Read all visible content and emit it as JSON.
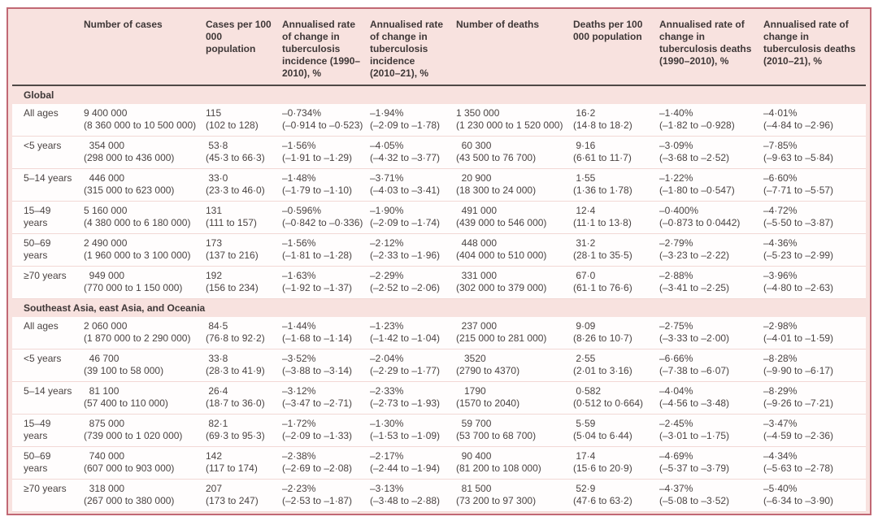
{
  "colors": {
    "frame_background": "#f8e2df",
    "frame_border": "#c16874",
    "header_rule": "#4f4846",
    "body_text": "#4a4342",
    "header_text": "#3e3737",
    "row_divider": "#f2d8d5",
    "row_background": "#fffdfd"
  },
  "table": {
    "columns": [
      "",
      "Number of cases",
      "Cases per 100 000 population",
      "Annualised rate of change in tuberculosis incidence (1990–2010), %",
      "Annualised rate of change in tuberculosis incidence (2010–21), %",
      "Number of deaths",
      "Deaths per 100 000 population",
      "Annualised rate of change in tuberculosis deaths (1990–2010), %",
      "Annualised rate of change in tuberculosis deaths (2010–21), %"
    ],
    "sections": [
      {
        "label": "Global",
        "rows": [
          {
            "label": "All ages",
            "cells": [
              "9 400 000\n(8 360 000 to 10 500 000)",
              "115\n(102 to 128)",
              "–0·734%\n(–0·914 to –0·523)",
              "–1·94%\n(–2·09 to –1·78)",
              "1 350 000\n(1 230 000 to 1 520 000)",
              " 16·2\n(14·8 to 18·2)",
              "–1·40%\n(–1·82 to –0·928)",
              "–4·01%\n(–4·84 to –2·96)"
            ]
          },
          {
            "label": "<5 years",
            "cells": [
              "  354 000\n(298 000 to 436 000)",
              " 53·8\n(45·3 to 66·3)",
              "–1·56%\n(–1·91 to –1·29)",
              "–4·05%\n(–4·32 to –3·77)",
              "  60 300\n(43 500 to 76 700)",
              " 9·16\n(6·61 to 11·7)",
              "–3·09%\n(–3·68 to –2·52)",
              "–7·85%\n(–9·63 to –5·84)"
            ]
          },
          {
            "label": "5–14 years",
            "cells": [
              "  446 000\n(315 000 to 623 000)",
              " 33·0\n(23·3 to 46·0)",
              "–1·48%\n(–1·79 to –1·10)",
              "–3·71%\n(–4·03 to –3·41)",
              "  20 900\n(18 300 to 24 000)",
              " 1·55\n(1·36 to 1·78)",
              "–1·22%\n(–1·80 to –0·547)",
              "–6·60%\n(–7·71 to –5·57)"
            ]
          },
          {
            "label": "15–49 years",
            "cells": [
              "5 160 000\n(4 380 000 to 6 180 000)",
              "131\n(111 to 157)",
              "–0·596%\n(–0·842 to –0·336)",
              "–1·90%\n(–2·09 to –1·74)",
              "  491 000\n(439 000 to 546 000)",
              " 12·4\n(11·1 to 13·8)",
              "–0·400%\n(–0·873 to 0·0442)",
              "–4·72%\n(–5·50 to –3·87)"
            ]
          },
          {
            "label": "50–69 years",
            "cells": [
              "2 490 000\n(1 960 000 to 3 100 000)",
              "173\n(137 to 216)",
              "–1·56%\n(–1·81 to –1·28)",
              "–2·12%\n(–2·33 to –1·96)",
              "  448 000\n(404 000 to 510 000)",
              " 31·2\n(28·1 to 35·5)",
              "–2·79%\n(–3·23 to –2·22)",
              "–4·36%\n(–5·23 to –2·99)"
            ]
          },
          {
            "label": "≥70 years",
            "cells": [
              "  949 000\n(770 000 to 1 150 000)",
              "192\n(156 to 234)",
              "–1·63%\n(–1·92 to –1·37)",
              "–2·29%\n(–2·52 to –2·06)",
              "  331 000\n(302 000 to 379 000)",
              " 67·0\n(61·1 to 76·6)",
              "–2·88%\n(–3·41 to –2·25)",
              "–3·96%\n(–4·80 to –2·63)"
            ]
          }
        ]
      },
      {
        "label": "Southeast Asia, east Asia, and Oceania",
        "rows": [
          {
            "label": "All ages",
            "cells": [
              "2 060 000\n(1 870 000 to 2 290 000)",
              " 84·5\n(76·8 to 92·2)",
              "–1·44%\n(–1·68 to –1·14)",
              "–1·23%\n(–1·42 to –1·04)",
              "  237 000\n(215 000 to 281 000)",
              " 9·09\n(8·26 to 10·7)",
              "–2·75%\n(–3·33 to –2·00)",
              "–2·98%\n(–4·01 to –1·59)"
            ]
          },
          {
            "label": "<5 years",
            "cells": [
              "  46 700\n(39 100 to 58 000)",
              " 33·8\n(28·3 to 41·9)",
              "–3·52%\n(–3·88 to –3·14)",
              "–2·04%\n(–2·29 to –1·77)",
              "   3520\n(2790 to 4370)",
              " 2·55\n(2·01 to 3·16)",
              "–6·66%\n(–7·38 to –6·07)",
              "–8·28%\n(–9·90 to –6·17)"
            ]
          },
          {
            "label": "5–14 years",
            "cells": [
              "  81 100\n(57 400 to 110 000)",
              " 26·4\n(18·7 to 36·0)",
              "–3·12%\n(–3·47 to –2·71)",
              "–2·33%\n(–2·73 to –1·93)",
              "   1790\n(1570 to 2040)",
              " 0·582\n(0·512 to 0·664)",
              "–4·04%\n(–4·56 to –3·48)",
              "–8·29%\n(–9·26 to –7·21)"
            ]
          },
          {
            "label": "15–49 years",
            "cells": [
              "  875 000\n(739 000 to 1 020 000)",
              " 82·1\n(69·3 to 95·3)",
              "–1·72%\n(–2·09 to –1·33)",
              "–1·30%\n(–1·53 to –1·09)",
              "  59 700\n(53 700 to 68 700)",
              " 5·59\n(5·04 to 6·44)",
              "–2·45%\n(–3·01 to –1·75)",
              "–3·47%\n(–4·59 to –2·36)"
            ]
          },
          {
            "label": "50–69 years",
            "cells": [
              "  740 000\n(607 000 to 903 000)",
              "142\n(117 to 174)",
              "–2·38%\n(–2·69 to –2·08)",
              "–2·17%\n(–2·44 to –1·94)",
              "  90 400\n(81 200 to 108 000)",
              " 17·4\n(15·6 to 20·9)",
              "–4·69%\n(–5·37 to –3·79)",
              "–4·34%\n(–5·63 to –2·78)"
            ]
          },
          {
            "label": "≥70 years",
            "cells": [
              "  318 000\n(267 000 to 380 000)",
              "207\n(173 to 247)",
              "–2·23%\n(–2·53 to –1·87)",
              "–3·13%\n(–3·48 to –2·88)",
              "  81 500\n(73 200 to 97 300)",
              " 52·9\n(47·6 to 63·2)",
              "–4·37%\n(–5·08 to –3·52)",
              "–5·40%\n(–6·34 to –3·90)"
            ]
          }
        ]
      }
    ]
  }
}
